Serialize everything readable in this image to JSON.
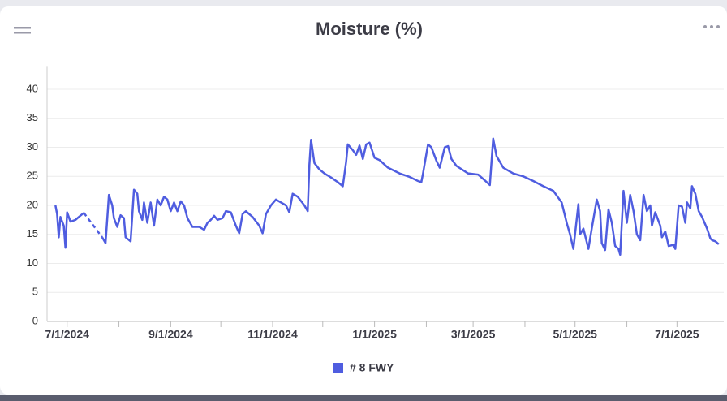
{
  "chart_data": {
    "type": "line",
    "title": "Moisture (%)",
    "xlim": [
      "2024-06-19",
      "2025-07-29"
    ],
    "xticks": [
      {
        "value": "2024-07-01",
        "label": "7/1/2024"
      },
      {
        "value": "2024-09-01",
        "label": "9/1/2024"
      },
      {
        "value": "2024-11-01",
        "label": "11/1/2024"
      },
      {
        "value": "2025-01-01",
        "label": "1/1/2025"
      },
      {
        "value": "2025-03-01",
        "label": "3/1/2025"
      },
      {
        "value": "2025-05-01",
        "label": "5/1/2025"
      },
      {
        "value": "2025-07-01",
        "label": "7/1/2025"
      }
    ],
    "xminorticks": [
      "2024-08-01",
      "2024-10-01",
      "2024-12-01",
      "2025-02-01",
      "2025-04-01",
      "2025-06-01"
    ],
    "ylim": [
      0,
      44
    ],
    "yticks": [
      0,
      5,
      10,
      15,
      20,
      25,
      30,
      35,
      40
    ],
    "grid": true,
    "legend": "bottom",
    "x": [
      "2024-06-24",
      "2024-06-25",
      "2024-06-26",
      "2024-06-27",
      "2024-06-29",
      "2024-06-30",
      "2024-07-01",
      "2024-07-03",
      "2024-07-06",
      "2024-07-08",
      "2024-07-11",
      "2024-07-17",
      "2024-07-22",
      "2024-07-24",
      "2024-07-26",
      "2024-07-28",
      "2024-07-29",
      "2024-07-31",
      "2024-08-02",
      "2024-08-04",
      "2024-08-05",
      "2024-08-08",
      "2024-08-10",
      "2024-08-12",
      "2024-08-13",
      "2024-08-15",
      "2024-08-16",
      "2024-08-18",
      "2024-08-20",
      "2024-08-22",
      "2024-08-24",
      "2024-08-26",
      "2024-08-28",
      "2024-08-30",
      "2024-09-01",
      "2024-09-03",
      "2024-09-05",
      "2024-09-07",
      "2024-09-09",
      "2024-09-11",
      "2024-09-14",
      "2024-09-18",
      "2024-09-21",
      "2024-09-23",
      "2024-09-25",
      "2024-09-27",
      "2024-09-29",
      "2024-10-02",
      "2024-10-04",
      "2024-10-07",
      "2024-10-10",
      "2024-10-12",
      "2024-10-14",
      "2024-10-16",
      "2024-10-20",
      "2024-10-24",
      "2024-10-26",
      "2024-10-28",
      "2024-10-31",
      "2024-11-03",
      "2024-11-06",
      "2024-11-09",
      "2024-11-11",
      "2024-11-13",
      "2024-11-16",
      "2024-11-20",
      "2024-11-22",
      "2024-11-23",
      "2024-11-24",
      "2024-11-26",
      "2024-11-29",
      "2024-12-02",
      "2024-12-06",
      "2024-12-10",
      "2024-12-13",
      "2024-12-15",
      "2024-12-16",
      "2024-12-19",
      "2024-12-21",
      "2024-12-23",
      "2024-12-25",
      "2024-12-27",
      "2024-12-29",
      "2025-01-01",
      "2025-01-04",
      "2025-01-09",
      "2025-01-16",
      "2025-01-22",
      "2025-01-27",
      "2025-01-29",
      "2025-01-30",
      "2025-02-02",
      "2025-02-04",
      "2025-02-07",
      "2025-02-09",
      "2025-02-12",
      "2025-02-14",
      "2025-02-16",
      "2025-02-19",
      "2025-02-26",
      "2025-03-04",
      "2025-03-08",
      "2025-03-11",
      "2025-03-13",
      "2025-03-15",
      "2025-03-19",
      "2025-03-25",
      "2025-03-31",
      "2025-04-06",
      "2025-04-12",
      "2025-04-18",
      "2025-04-23",
      "2025-04-26",
      "2025-04-28",
      "2025-04-30",
      "2025-05-03",
      "2025-05-04",
      "2025-05-06",
      "2025-05-09",
      "2025-05-11",
      "2025-05-14",
      "2025-05-16",
      "2025-05-17",
      "2025-05-19",
      "2025-05-21",
      "2025-05-23",
      "2025-05-25",
      "2025-05-27",
      "2025-05-28",
      "2025-05-30",
      "2025-06-01",
      "2025-06-03",
      "2025-06-05",
      "2025-06-07",
      "2025-06-09",
      "2025-06-11",
      "2025-06-13",
      "2025-06-15",
      "2025-06-16",
      "2025-06-18",
      "2025-06-21",
      "2025-06-22",
      "2025-06-24",
      "2025-06-26",
      "2025-06-29",
      "2025-06-30",
      "2025-07-02",
      "2025-07-04",
      "2025-07-06",
      "2025-07-07",
      "2025-07-09",
      "2025-07-10",
      "2025-07-12",
      "2025-07-14",
      "2025-07-16",
      "2025-07-19",
      "2025-07-21",
      "2025-07-22",
      "2025-07-24",
      "2025-07-26"
    ],
    "series": [
      {
        "name": "# 8 FWY",
        "color": "#4f5de0",
        "values": [
          20,
          18.5,
          14.5,
          18,
          16.5,
          12.7,
          18.8,
          17.2,
          17.5,
          18,
          18.7,
          null,
          14.5,
          13.5,
          21.8,
          20,
          17.8,
          16.3,
          18.3,
          17.8,
          14.5,
          13.8,
          22.7,
          22,
          19,
          17.5,
          20.5,
          17,
          20.5,
          16.5,
          21,
          20,
          21.5,
          21,
          19,
          20.5,
          19,
          20.7,
          20,
          17.8,
          16.3,
          16.3,
          15.8,
          17,
          17.5,
          18.2,
          17.5,
          17.8,
          19,
          18.8,
          16.5,
          15.2,
          18.5,
          19,
          18,
          16.5,
          15.2,
          18.5,
          20,
          21,
          20.5,
          20,
          18.8,
          22,
          21.5,
          20,
          19,
          27,
          31.3,
          27.3,
          26.2,
          25.5,
          24.8,
          24,
          23.3,
          27.5,
          30.5,
          29.5,
          28.7,
          30.3,
          28,
          30.5,
          30.8,
          28.2,
          27.8,
          26.5,
          25.5,
          24.9,
          24.2,
          24,
          25.5,
          30.5,
          30,
          27.7,
          26.5,
          30,
          30.2,
          28,
          26.8,
          25.5,
          25.3,
          24.3,
          23.5,
          31.5,
          28.5,
          26.5,
          25.5,
          25,
          24.2,
          23.3,
          22.5,
          20.5,
          17,
          15,
          12.5,
          20.2,
          15,
          16,
          12.5,
          16,
          21,
          19,
          13.5,
          12.3,
          19.3,
          17,
          13,
          12.5,
          11.5,
          22.5,
          17,
          21.8,
          19,
          15,
          14,
          21.8,
          19,
          20,
          16.5,
          18.8,
          16.5,
          14.5,
          15.5,
          13,
          13.2,
          12.5,
          20,
          19.8,
          17,
          20.5,
          19.5,
          23.3,
          22,
          19,
          18,
          16,
          14.3,
          14,
          13.8,
          13.3
        ]
      }
    ]
  }
}
